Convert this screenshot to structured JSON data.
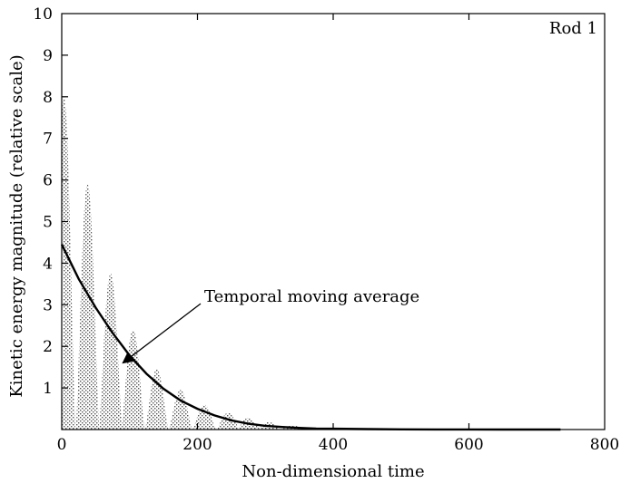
{
  "chart_data": {
    "type": "line",
    "panel_label": "Rod 1",
    "xlabel": "Non-dimensional time",
    "ylabel": "Kinetic energy magnitude (relative scale)",
    "xlim": [
      0,
      800
    ],
    "ylim": [
      0,
      10
    ],
    "x_ticks": [
      0,
      200,
      400,
      600,
      800
    ],
    "y_ticks": [
      1,
      2,
      3,
      4,
      5,
      6,
      7,
      8,
      9,
      10
    ],
    "x_tick_labels": [
      "0",
      "200",
      "400",
      "600",
      "800"
    ],
    "y_tick_labels": [
      "1",
      "2",
      "3",
      "4",
      "5",
      "6",
      "7",
      "8",
      "9",
      "10"
    ],
    "grid": false,
    "series": [
      {
        "style": "stippled-fill",
        "color": "#8c8c8c",
        "peaks": [
          {
            "x": 3,
            "y": 8.0
          },
          {
            "x": 38,
            "y": 5.9
          },
          {
            "x": 72,
            "y": 3.75
          },
          {
            "x": 105,
            "y": 2.4
          },
          {
            "x": 140,
            "y": 1.45
          },
          {
            "x": 175,
            "y": 0.95
          },
          {
            "x": 210,
            "y": 0.6
          },
          {
            "x": 245,
            "y": 0.4
          },
          {
            "x": 275,
            "y": 0.28
          },
          {
            "x": 305,
            "y": 0.18
          },
          {
            "x": 340,
            "y": 0.1
          },
          {
            "x": 375,
            "y": 0.05
          },
          {
            "x": 410,
            "y": 0.03
          }
        ]
      },
      {
        "name": "Temporal moving average",
        "style": "line",
        "color": "#000000",
        "x": [
          0,
          25,
          50,
          75,
          100,
          125,
          150,
          175,
          200,
          225,
          250,
          275,
          300,
          325,
          350,
          375,
          400,
          450,
          500,
          550,
          600,
          650,
          700,
          735
        ],
        "y": [
          4.45,
          3.62,
          2.93,
          2.32,
          1.78,
          1.34,
          0.98,
          0.7,
          0.5,
          0.34,
          0.22,
          0.14,
          0.09,
          0.06,
          0.04,
          0.025,
          0.02,
          0.01,
          0.005,
          0.003,
          0.002,
          0.001,
          0.001,
          0.0
        ]
      }
    ],
    "annotations": [
      {
        "text": "Temporal moving average",
        "text_anchor": {
          "x": 210,
          "y": 3.2
        },
        "arrow_to": {
          "x": 90,
          "y": 1.6
        }
      }
    ]
  }
}
